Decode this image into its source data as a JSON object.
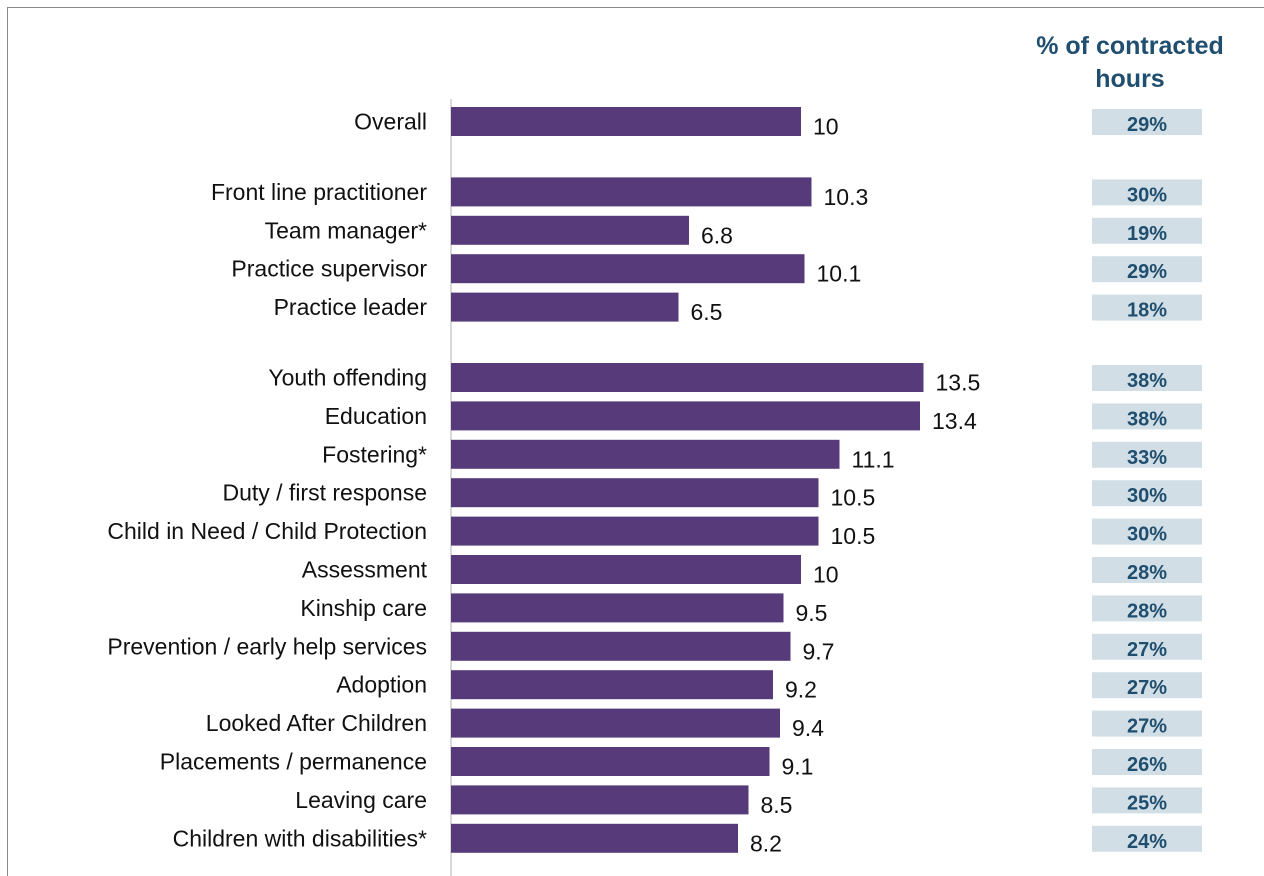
{
  "header": {
    "pct_line1": "% of contracted",
    "pct_line2": "hours"
  },
  "colors": {
    "bar": "#573A7A",
    "pct_box": "#D2DEE6",
    "pct_text": "#1F4E6E",
    "axis": "#D9D9D9"
  },
  "chart_data": {
    "type": "bar",
    "orientation": "horizontal",
    "title": "",
    "xlabel": "",
    "ylabel": "",
    "xlim": [
      0,
      15
    ],
    "grid": false,
    "legend": "none",
    "groups": [
      {
        "categories": [
          "Overall"
        ],
        "values": [
          10
        ],
        "pct": [
          "29%"
        ]
      },
      {
        "categories": [
          "Front line practitioner",
          "Team manager*",
          "Practice supervisor",
          "Practice leader"
        ],
        "values": [
          10.3,
          6.8,
          10.1,
          6.5
        ],
        "pct": [
          "30%",
          "19%",
          "29%",
          "18%"
        ]
      },
      {
        "categories": [
          "Youth offending",
          "Education",
          "Fostering*",
          "Duty / first response",
          "Child in Need / Child Protection",
          "Assessment",
          "Kinship care",
          "Prevention / early help services",
          "Adoption",
          "Looked After Children",
          "Placements / permanence",
          "Leaving care",
          "Children with disabilities*"
        ],
        "values": [
          13.5,
          13.4,
          11.1,
          10.5,
          10.5,
          10,
          9.5,
          9.7,
          9.2,
          9.4,
          9.1,
          8.5,
          8.2
        ],
        "pct": [
          "38%",
          "38%",
          "33%",
          "30%",
          "30%",
          "28%",
          "28%",
          "27%",
          "27%",
          "27%",
          "26%",
          "25%",
          "24%"
        ]
      }
    ]
  }
}
